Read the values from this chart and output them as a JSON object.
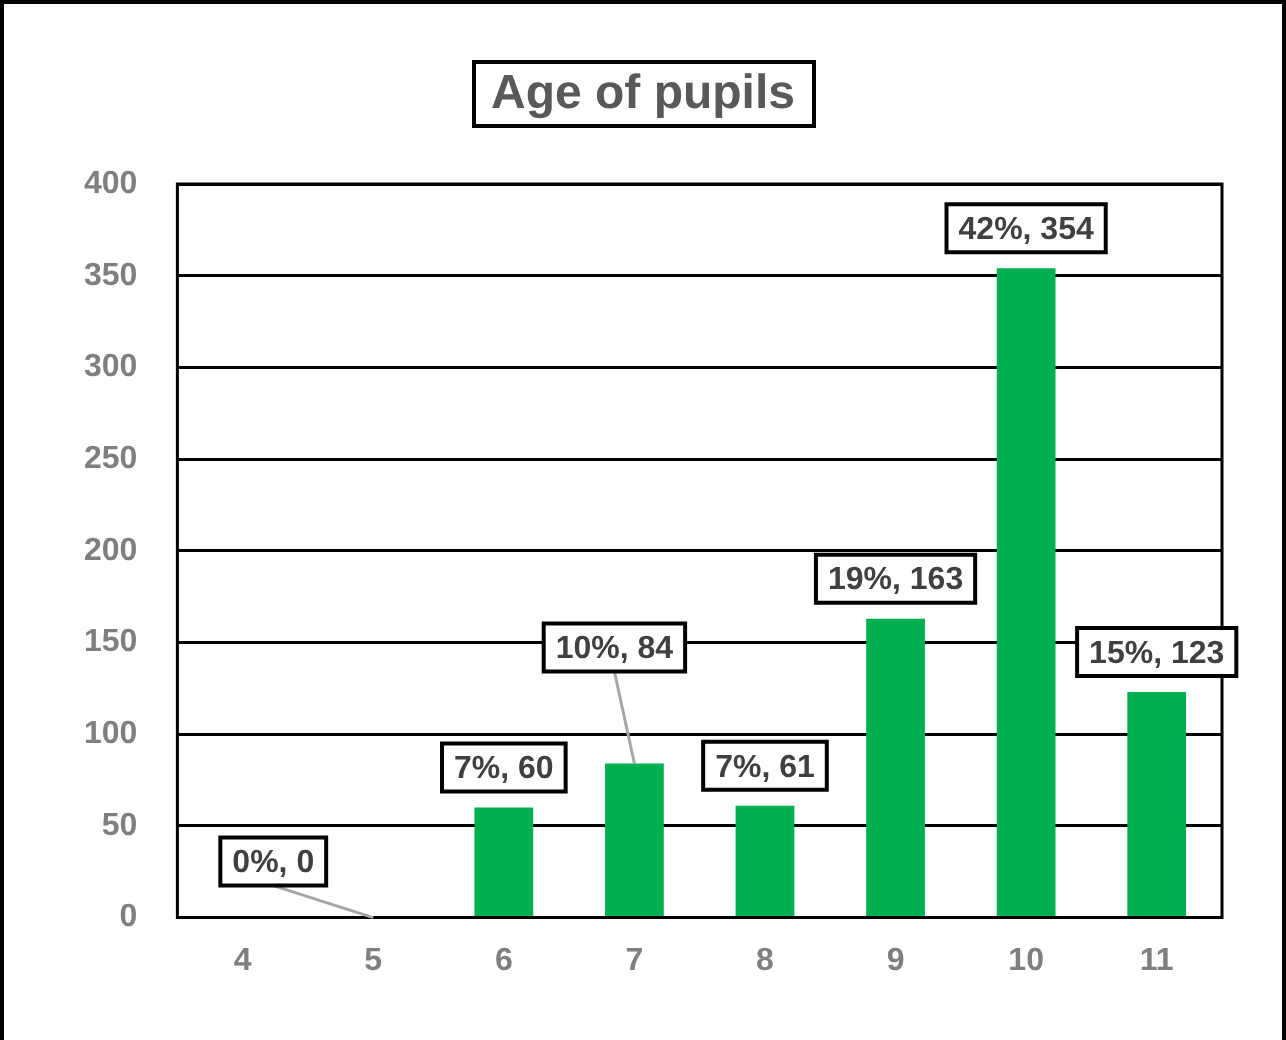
{
  "chart_data": {
    "type": "bar",
    "title": "Age of pupils",
    "categories": [
      "4",
      "5",
      "6",
      "7",
      "8",
      "9",
      "10",
      "11"
    ],
    "values": [
      0,
      0,
      60,
      84,
      61,
      163,
      354,
      123
    ],
    "color": "#00b050",
    "value_labels": [
      null,
      "0%, 0",
      "7%, 60",
      "10%, 84",
      "7%, 61",
      "19%, 163",
      "42%, 354",
      "15%, 123"
    ],
    "ylim": [
      0,
      400
    ],
    "yticks": [
      0,
      50,
      100,
      150,
      200,
      250,
      300,
      350,
      400
    ],
    "grid": "y",
    "legend": false
  }
}
